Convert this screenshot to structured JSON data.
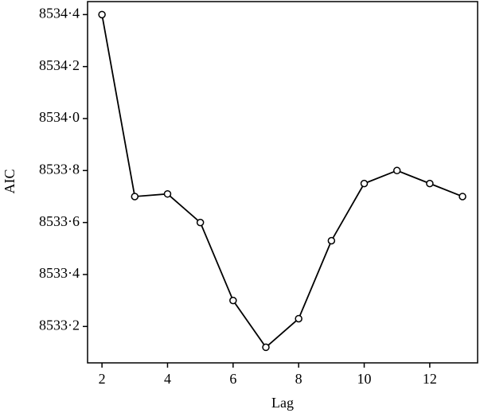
{
  "chart_data": {
    "type": "line",
    "x_label": "Lag",
    "y_label": "AIC",
    "x": [
      2,
      3,
      4,
      5,
      6,
      7,
      8,
      9,
      10,
      11,
      12,
      13
    ],
    "series": [
      {
        "name": "AIC",
        "color": "#000000",
        "values": [
          8534.4,
          8533.7,
          8533.71,
          8533.6,
          8533.3,
          8533.12,
          8533.23,
          8533.53,
          8533.75,
          8533.8,
          8533.75,
          8533.7
        ]
      }
    ],
    "xlim": [
      1.56,
      13.46
    ],
    "ylim": [
      8533.06,
      8534.45
    ],
    "xticks": [
      2,
      4,
      6,
      8,
      10,
      12
    ],
    "yticks": [
      {
        "value": 8533.2,
        "label": "8533·2"
      },
      {
        "value": 8533.4,
        "label": "8533·4"
      },
      {
        "value": 8533.6,
        "label": "8533·6"
      },
      {
        "value": 8533.8,
        "label": "8533·8"
      },
      {
        "value": 8534.0,
        "label": "8534·0"
      },
      {
        "value": 8534.2,
        "label": "8534·2"
      },
      {
        "value": 8534.4,
        "label": "8534·4"
      }
    ]
  }
}
